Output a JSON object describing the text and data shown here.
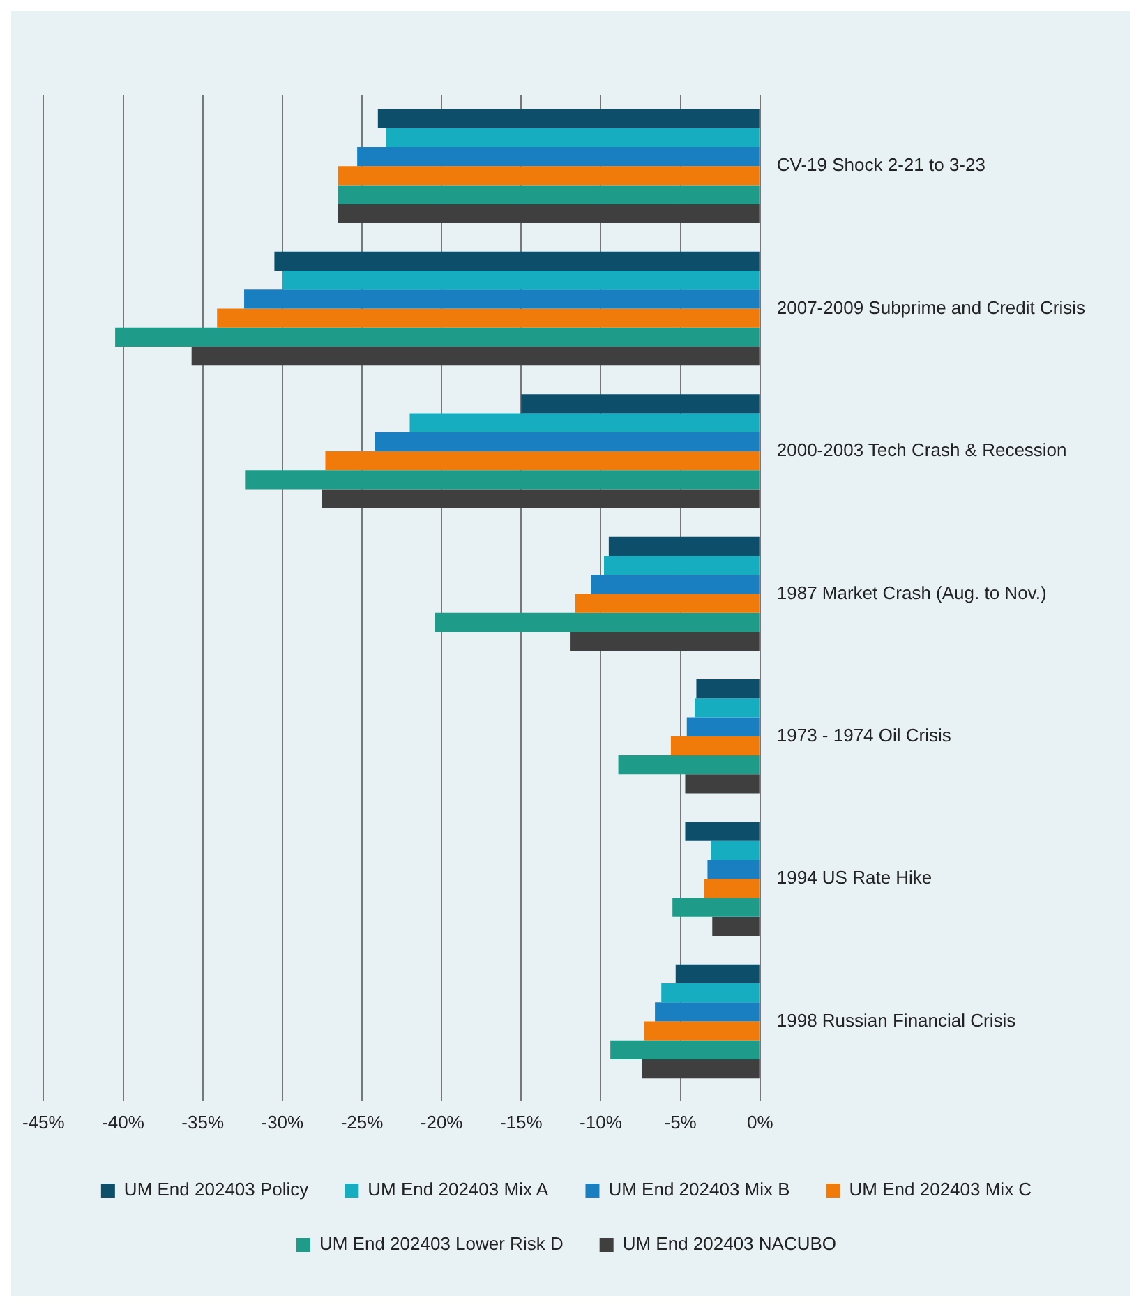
{
  "chart_data": {
    "type": "bar",
    "orientation": "horizontal",
    "categories": [
      "CV-19 Shock 2-21 to 3-23",
      "2007-2009 Subprime and Credit Crisis",
      "2000-2003 Tech Crash & Recession",
      "1987 Market Crash (Aug. to Nov.)",
      "1973 - 1974 Oil Crisis",
      "1994 US Rate Hike",
      "1998 Russian Financial Crisis"
    ],
    "series": [
      {
        "name": "UM End 202403 Policy",
        "color": "#0d4f6b",
        "values": [
          -24.0,
          -30.5,
          -15.0,
          -9.5,
          -4.0,
          -4.7,
          -5.3
        ]
      },
      {
        "name": "UM End 202403 Mix A",
        "color": "#17adc0",
        "values": [
          -23.5,
          -30.0,
          -22.0,
          -9.8,
          -4.1,
          -3.1,
          -6.2
        ]
      },
      {
        "name": "UM End 202403 Mix B",
        "color": "#1a7fc1",
        "values": [
          -25.3,
          -32.4,
          -24.2,
          -10.6,
          -4.6,
          -3.3,
          -6.6
        ]
      },
      {
        "name": "UM End 202403 Mix C",
        "color": "#f07a0a",
        "values": [
          -26.5,
          -34.1,
          -27.3,
          -11.6,
          -5.6,
          -3.5,
          -7.3
        ]
      },
      {
        "name": "UM End 202403 Lower Risk D",
        "color": "#1f9b8a",
        "values": [
          -26.5,
          -40.5,
          -32.3,
          -20.4,
          -8.9,
          -5.5,
          -9.4
        ]
      },
      {
        "name": "UM End 202403 NACUBO",
        "color": "#3f3f3f",
        "values": [
          -26.5,
          -35.7,
          -27.5,
          -11.9,
          -4.7,
          -3.0,
          -7.4
        ]
      }
    ],
    "xlim": [
      -45,
      0
    ],
    "xticks": [
      {
        "value": -45,
        "label": "-45%"
      },
      {
        "value": -40,
        "label": "-40%"
      },
      {
        "value": -35,
        "label": "-35%"
      },
      {
        "value": -30,
        "label": "-30%"
      },
      {
        "value": -25,
        "label": "-25%"
      },
      {
        "value": -20,
        "label": "-20%"
      },
      {
        "value": -15,
        "label": "-15%"
      },
      {
        "value": -10,
        "label": "-10%"
      },
      {
        "value": -5,
        "label": "-5%"
      },
      {
        "value": 0,
        "label": "0%"
      }
    ],
    "grid": "x",
    "legend": "bottom"
  }
}
